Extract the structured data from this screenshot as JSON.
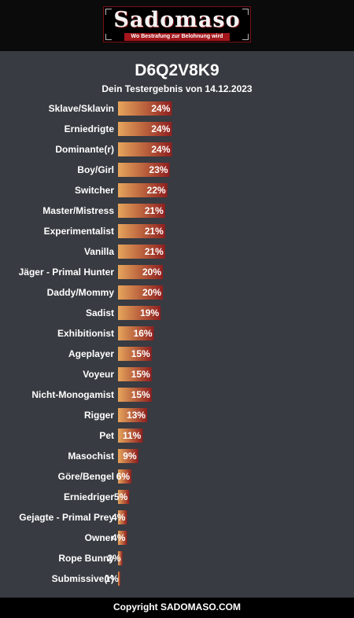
{
  "header": {
    "logo_text": "Sadomaso",
    "logo_tagline": "Wo Bestrafung zur Belohnung wird"
  },
  "result": {
    "title": "D6Q2V8K9",
    "subtitle": "Dein Testergebnis von 14.12.2023"
  },
  "footer": {
    "copyright": "Copyright SADOMASO.COM"
  },
  "colors": {
    "background": "#383b41",
    "bar_start": "#e6a55c",
    "bar_end": "#8f1f1f",
    "accent_red": "#a3161c"
  },
  "chart_data": {
    "type": "bar",
    "orientation": "horizontal",
    "categories": [
      "Sklave/Sklavin",
      "Erniedrigte",
      "Dominante(r)",
      "Boy/Girl",
      "Switcher",
      "Master/Mistress",
      "Experimentalist",
      "Vanilla",
      "Jäger - Primal Hunter",
      "Daddy/Mommy",
      "Sadist",
      "Exhibitionist",
      "Ageplayer",
      "Voyeur",
      "Nicht-Monogamist",
      "Rigger",
      "Pet",
      "Masochist",
      "Göre/Bengel",
      "Erniedriger",
      "Gejagte - Primal Prey",
      "Owner",
      "Rope Bunny",
      "Submissive(r)"
    ],
    "values": [
      24,
      24,
      24,
      23,
      22,
      21,
      21,
      21,
      20,
      20,
      19,
      16,
      15,
      15,
      15,
      13,
      11,
      9,
      6,
      5,
      4,
      4,
      2,
      1
    ],
    "value_labels": [
      "24%",
      "24%",
      "24%",
      "23%",
      "22%",
      "21%",
      "21%",
      "21%",
      "20%",
      "20%",
      "19%",
      "16%",
      "15%",
      "15%",
      "15%",
      "13%",
      "11%",
      "9%",
      "6%",
      "5%",
      "4%",
      "4%",
      "2%",
      "1%"
    ],
    "unit": "%",
    "title": "",
    "xlabel": "",
    "ylabel": "",
    "grid": false,
    "legend": false
  }
}
